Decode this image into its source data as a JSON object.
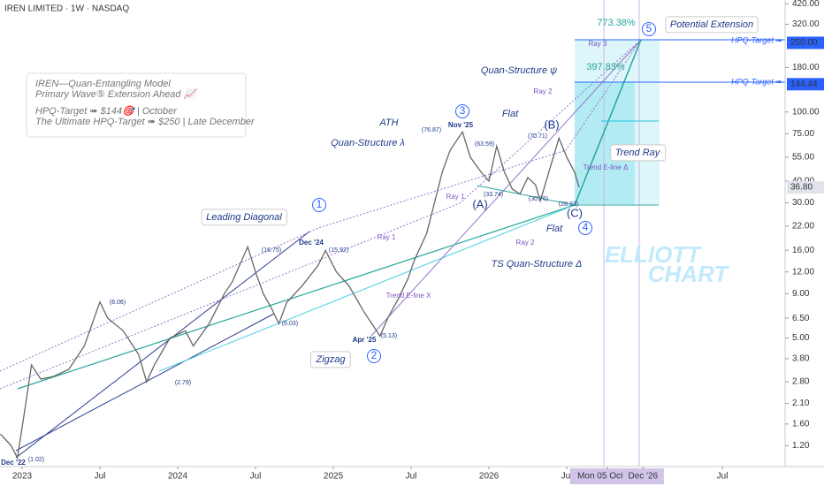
{
  "chart_data": {
    "type": "line",
    "log_scale": true,
    "color": "#666666",
    "x": [
      2022.86,
      2022.93,
      2022.97,
      2023.02,
      2023.06,
      2023.12,
      2023.2,
      2023.3,
      2023.4,
      2023.5,
      2023.55,
      2023.65,
      2023.75,
      2023.8,
      2023.85,
      2023.95,
      2024.05,
      2024.1,
      2024.2,
      2024.3,
      2024.35,
      2024.45,
      2024.5,
      2024.55,
      2024.6,
      2024.65,
      2024.7,
      2024.8,
      2024.9,
      2024.95,
      2025.02,
      2025.1,
      2025.2,
      2025.25,
      2025.3,
      2025.35,
      2025.42,
      2025.48,
      2025.52,
      2025.6,
      2025.65,
      2025.7,
      2025.75,
      2025.8,
      2025.83,
      2025.88,
      2025.95,
      2026.0,
      2026.05,
      2026.1,
      2026.15,
      2026.2,
      2026.25,
      2026.3,
      2026.33,
      2026.4,
      2026.45,
      2026.5,
      2026.55,
      2026.58
    ],
    "values": [
      1.4,
      1.2,
      1.02,
      2.0,
      3.5,
      2.9,
      3.0,
      3.3,
      4.5,
      8.06,
      6.5,
      5.5,
      4.0,
      2.79,
      3.5,
      5.0,
      5.5,
      4.5,
      6.0,
      9.0,
      10.5,
      16.75,
      12,
      9,
      7.5,
      6.03,
      8,
      10,
      13,
      15.92,
      12,
      10,
      7,
      6,
      5.13,
      6.5,
      8.5,
      11,
      14,
      20,
      30,
      45,
      60,
      70,
      76.87,
      55,
      45,
      40,
      63.59,
      45,
      36,
      33.74,
      42,
      38,
      30.76,
      50,
      70.71,
      55,
      45,
      36.8
    ],
    "xlim": [
      2022.858,
      2027.903
    ],
    "ylim": [
      0.91,
      441
    ],
    "xticks": [
      {
        "value": 2023,
        "label": "2023"
      },
      {
        "value": 2023.5,
        "label": "Jul"
      },
      {
        "value": 2024,
        "label": "2024"
      },
      {
        "value": 2024.5,
        "label": "Jul"
      },
      {
        "value": 2025,
        "label": "2025"
      },
      {
        "value": 2025.5,
        "label": "Jul"
      },
      {
        "value": 2026,
        "label": "2026"
      },
      {
        "value": 2026.5,
        "label": "Jul"
      },
      {
        "value": 2026.76,
        "label": "Mon 05 Oct '26"
      },
      {
        "value": 2026.99,
        "label": "Dec '26"
      },
      {
        "value": 2027.5,
        "label": "Jul"
      }
    ],
    "yticks": [
      {
        "value": 420,
        "label": "420.00"
      },
      {
        "value": 320,
        "label": "320.00"
      },
      {
        "value": 180,
        "label": "180.00"
      },
      {
        "value": 100,
        "label": "100.00"
      },
      {
        "value": 75,
        "label": "75.00"
      },
      {
        "value": 55,
        "label": "55.00"
      },
      {
        "value": 40,
        "label": "40.00"
      },
      {
        "value": 30,
        "label": "30.00"
      },
      {
        "value": 22,
        "label": "22.00"
      },
      {
        "value": 16,
        "label": "16.00"
      },
      {
        "value": 12,
        "label": "12.00"
      },
      {
        "value": 9,
        "label": "9.00"
      },
      {
        "value": 6.5,
        "label": "6.50"
      },
      {
        "value": 5,
        "label": "5.00"
      },
      {
        "value": 3.8,
        "label": "3.80"
      },
      {
        "value": 2.8,
        "label": "2.80"
      },
      {
        "value": 2.1,
        "label": "2.10"
      },
      {
        "value": 1.6,
        "label": "1.60"
      },
      {
        "value": 1.2,
        "label": "1.20"
      }
    ],
    "price_tags": [
      {
        "value": 250,
        "label": "250.00",
        "color": "#2962ff"
      },
      {
        "value": 144.44,
        "label": "144.44",
        "color": "#2962ff"
      },
      {
        "value": 36.8,
        "label": "36.80",
        "color": "#e0e3eb"
      }
    ],
    "annotations": [
      "IREN LIMITED · 1W · NASDAQ",
      "IREN—Quan-Entangling Model",
      "Primary Wave⑤ Extension Ahead 📈",
      "HPQ-Target ➠ $144🎯 | October",
      "The Ultimate HPQ-Target ➠ $250 | Late December",
      "773.38%",
      "397.83%",
      "Potential Extension",
      "HPQ-Target ➠",
      "HPQ-Target ➠",
      "Leading Diagonal",
      "Zigzag",
      "ATH",
      "Quan-Structure λ",
      "Quan-Structure ψ",
      "Flat",
      "Flat",
      "Trend Ray",
      "TS Quan-Structure Δ",
      "Ray 1",
      "Ray 1",
      "Ray 2",
      "Ray 2",
      "Ray 3",
      "Trend E-line Δ",
      "Trend E-line X",
      "Dec '22",
      "Dec '24",
      "Apr '25",
      "Nov '25",
      "(1.02)",
      "(8.06)",
      "(2.79)",
      "(16.75)",
      "(6.03)",
      "(15.92)",
      "(5.13)",
      "(76.87)",
      "(63.59)",
      "(33.74)",
      "(30.76)",
      "(70.71)",
      "(28.93)",
      "1",
      "2",
      "3",
      "4",
      "5",
      "(A)",
      "(B)",
      "(C)",
      "ELLIOTT",
      "CHART"
    ]
  }
}
